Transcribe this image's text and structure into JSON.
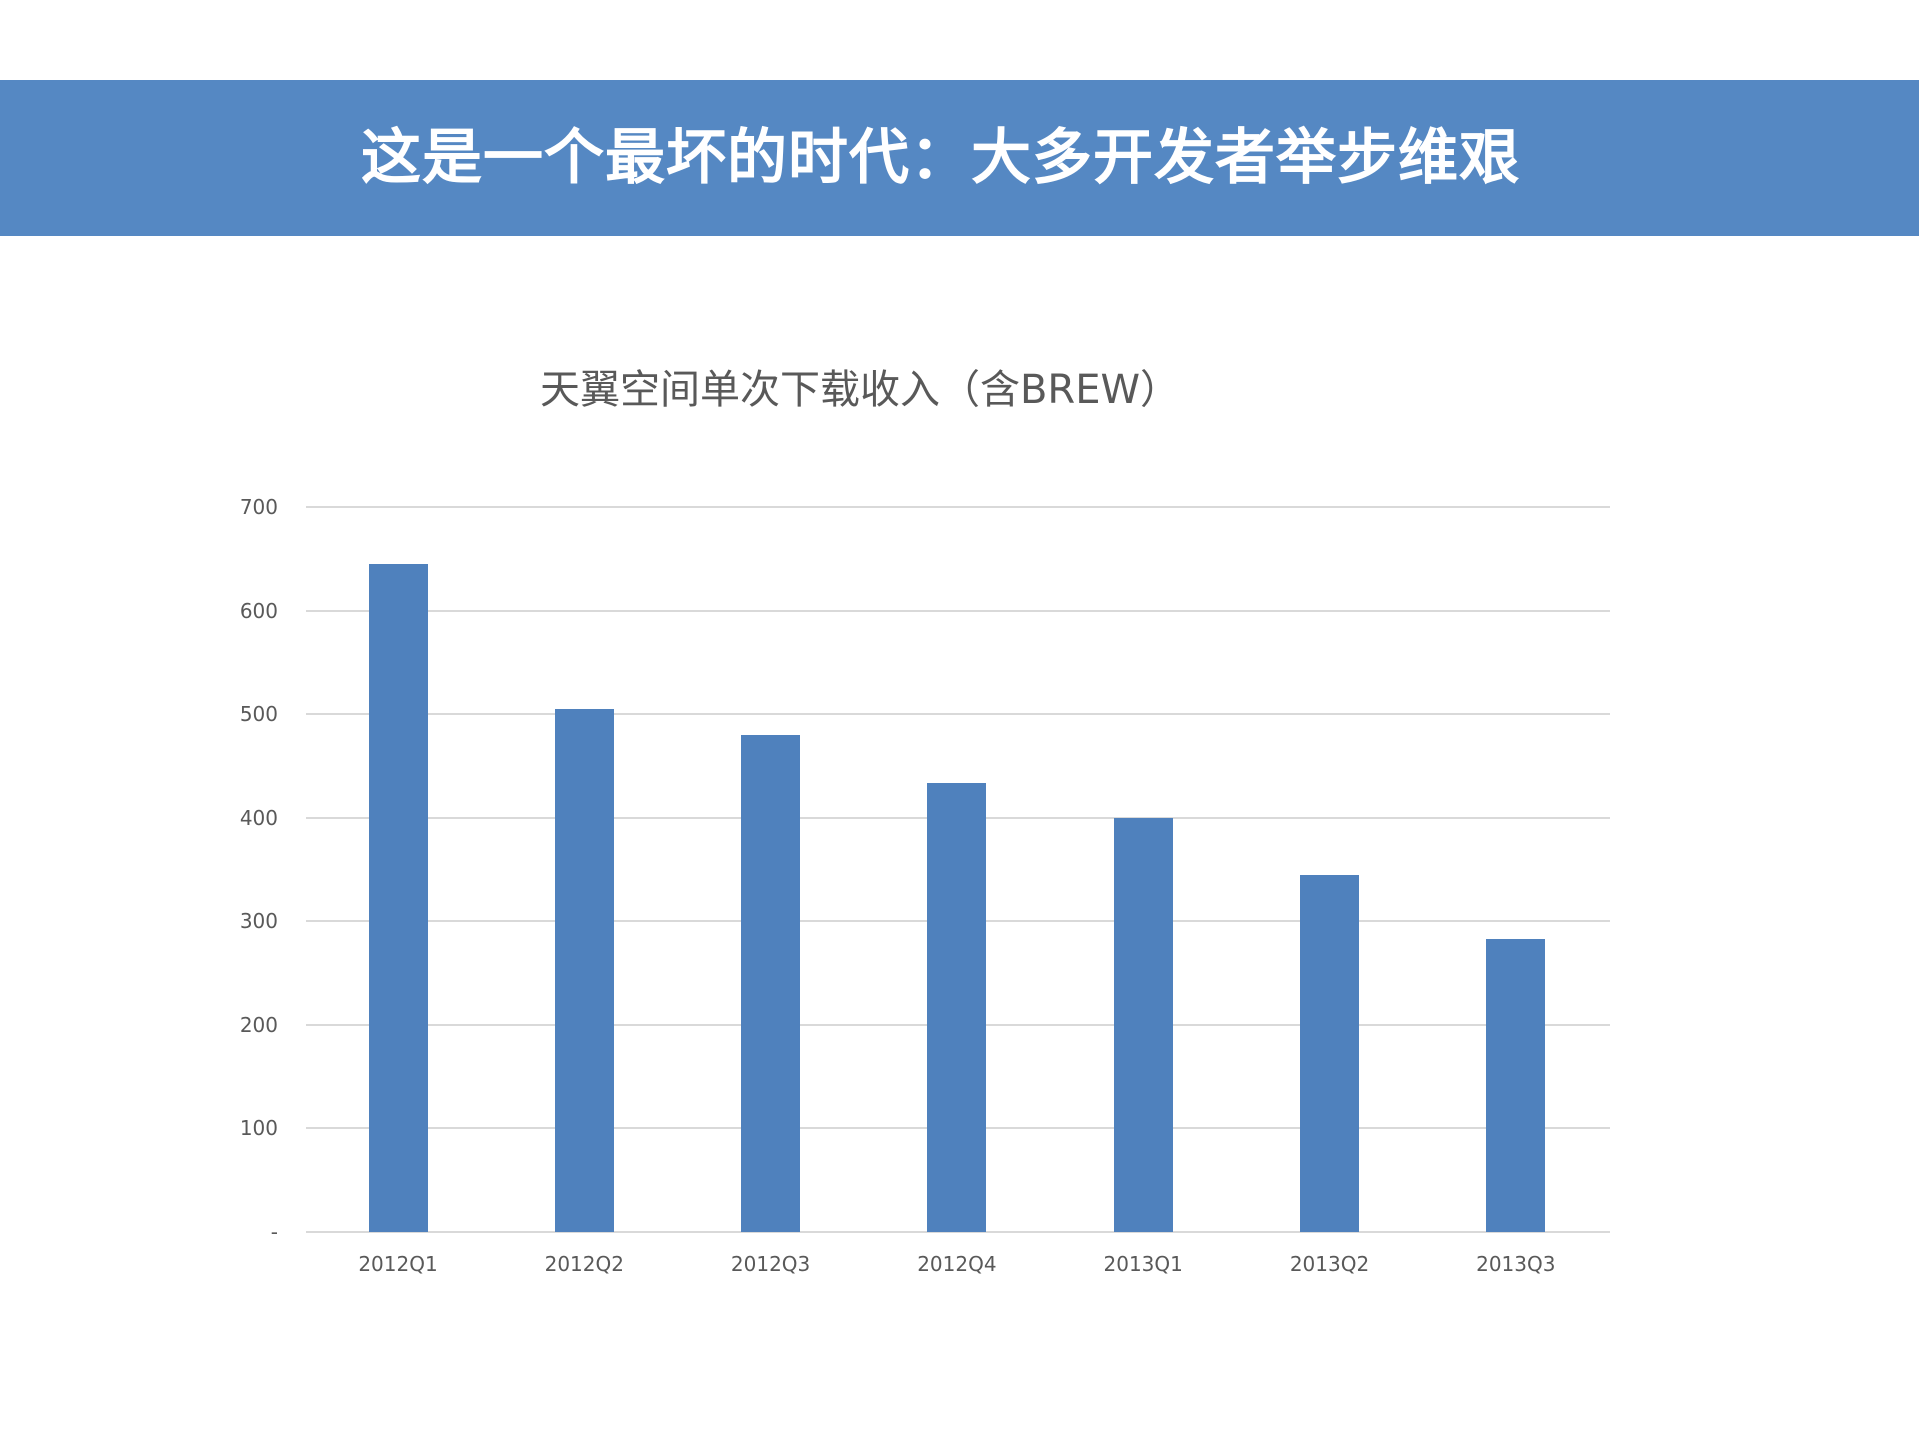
{
  "slide": {
    "header_title": "这是一个最坏的时代：大多开发者举步维艰",
    "colors": {
      "banner": "#5588c3",
      "bar": "#4f81bd",
      "gridline": "#d9d9d9",
      "text": "#595959"
    }
  },
  "chart_data": {
    "type": "bar",
    "title": "天翼空间单次下载收入（含BREW）",
    "xlabel": "",
    "ylabel": "",
    "categories": [
      "2012Q1",
      "2012Q2",
      "2012Q3",
      "2012Q4",
      "2013Q1",
      "2013Q2",
      "2013Q3"
    ],
    "values": [
      645,
      505,
      480,
      434,
      400,
      345,
      283
    ],
    "ylim": [
      0,
      700
    ],
    "yticks": [
      0,
      100,
      200,
      300,
      400,
      500,
      600,
      700
    ],
    "ytick_labels": [
      "-",
      "100",
      "200",
      "300",
      "400",
      "500",
      "600",
      "700"
    ],
    "grid": true,
    "legend": null
  }
}
